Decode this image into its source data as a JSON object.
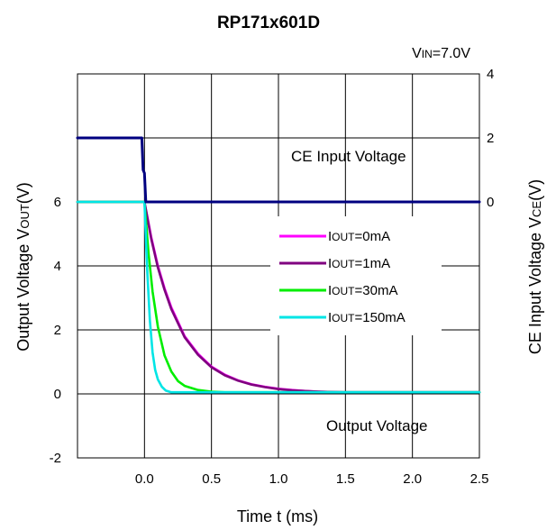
{
  "chart_data": {
    "type": "line",
    "title": "RP171x601D",
    "vin_label": {
      "prefix": "V",
      "sub": "IN",
      "rest": "=7.0V"
    },
    "xlabel": "Time t (ms)",
    "ylabel_left": {
      "pre": "Output Voltage V",
      "sub": "OUT",
      "post": "(V)"
    },
    "ylabel_right": {
      "pre": "CE Input Voltage V",
      "sub": "CE",
      "post": "(V)"
    },
    "xlim": [
      -0.5,
      2.5
    ],
    "x_ticks": [
      "0.0",
      "0.5",
      "1.0",
      "1.5",
      "2.0",
      "2.5"
    ],
    "x_tick_values": [
      0.0,
      0.5,
      1.0,
      1.5,
      2.0,
      2.5
    ],
    "ylim_left": [
      -2,
      10
    ],
    "y_ticks_left": [
      "-2",
      "0",
      "2",
      "4",
      "6"
    ],
    "y_tick_values_left": [
      -2,
      0,
      2,
      4,
      6
    ],
    "ylim_right": [
      -8,
      4
    ],
    "y_ticks_right": [
      "0",
      "2",
      "4"
    ],
    "y_tick_values_right": [
      0,
      2,
      4
    ],
    "grid": true,
    "annotations": {
      "ce": "CE Input Voltage",
      "out": "Output Voltage"
    },
    "legend_position": "center-right",
    "series": [
      {
        "name": "0mA",
        "color": "#ff00ff",
        "axis": "left",
        "x": [
          -0.5,
          -0.2,
          0.0,
          0.05,
          0.1,
          0.15,
          0.2,
          0.3,
          0.4,
          0.5,
          0.6,
          0.7,
          0.8,
          0.9,
          1.0,
          1.1,
          1.2,
          1.3,
          1.4,
          1.5,
          1.6,
          1.8,
          2.0,
          2.5
        ],
        "y": [
          6.0,
          6.0,
          6.0,
          4.9,
          4.0,
          3.3,
          2.7,
          1.8,
          1.25,
          0.85,
          0.6,
          0.42,
          0.3,
          0.22,
          0.16,
          0.12,
          0.09,
          0.07,
          0.06,
          0.05,
          0.05,
          0.05,
          0.05,
          0.05
        ]
      },
      {
        "name": "1mA",
        "color": "#800080",
        "axis": "left",
        "x": [
          -0.5,
          -0.2,
          0.0,
          0.05,
          0.1,
          0.15,
          0.2,
          0.3,
          0.4,
          0.5,
          0.6,
          0.7,
          0.8,
          0.9,
          1.0,
          1.1,
          1.2,
          1.3,
          1.4,
          1.5,
          1.6,
          1.8,
          2.0,
          2.5
        ],
        "y": [
          6.0,
          6.0,
          6.0,
          4.85,
          3.95,
          3.25,
          2.65,
          1.77,
          1.22,
          0.83,
          0.58,
          0.41,
          0.29,
          0.21,
          0.15,
          0.11,
          0.09,
          0.07,
          0.06,
          0.05,
          0.05,
          0.05,
          0.05,
          0.05
        ]
      },
      {
        "name": "30mA",
        "color": "#00ee00",
        "axis": "left",
        "x": [
          -0.5,
          -0.2,
          0.0,
          0.03,
          0.06,
          0.1,
          0.15,
          0.2,
          0.25,
          0.3,
          0.4,
          0.5,
          0.6,
          0.8,
          1.0,
          2.5
        ],
        "y": [
          6.0,
          6.0,
          6.0,
          4.4,
          3.2,
          2.1,
          1.2,
          0.7,
          0.4,
          0.25,
          0.12,
          0.07,
          0.05,
          0.05,
          0.05,
          0.05
        ]
      },
      {
        "name": "150mA",
        "color": "#00e5e5",
        "axis": "left",
        "x": [
          -0.5,
          -0.2,
          0.0,
          0.02,
          0.04,
          0.06,
          0.08,
          0.1,
          0.13,
          0.16,
          0.2,
          0.3,
          2.5
        ],
        "y": [
          6.0,
          6.0,
          6.0,
          3.9,
          2.3,
          1.3,
          0.75,
          0.45,
          0.22,
          0.1,
          0.05,
          0.05,
          0.05
        ]
      },
      {
        "name": "CE",
        "color": "#000080",
        "axis": "right",
        "x": [
          -0.5,
          -0.02,
          -0.01,
          0.0,
          0.01,
          0.02,
          2.5
        ],
        "y": [
          2.0,
          2.0,
          1.0,
          0.9,
          0.0,
          0.0,
          0.0
        ]
      }
    ]
  }
}
